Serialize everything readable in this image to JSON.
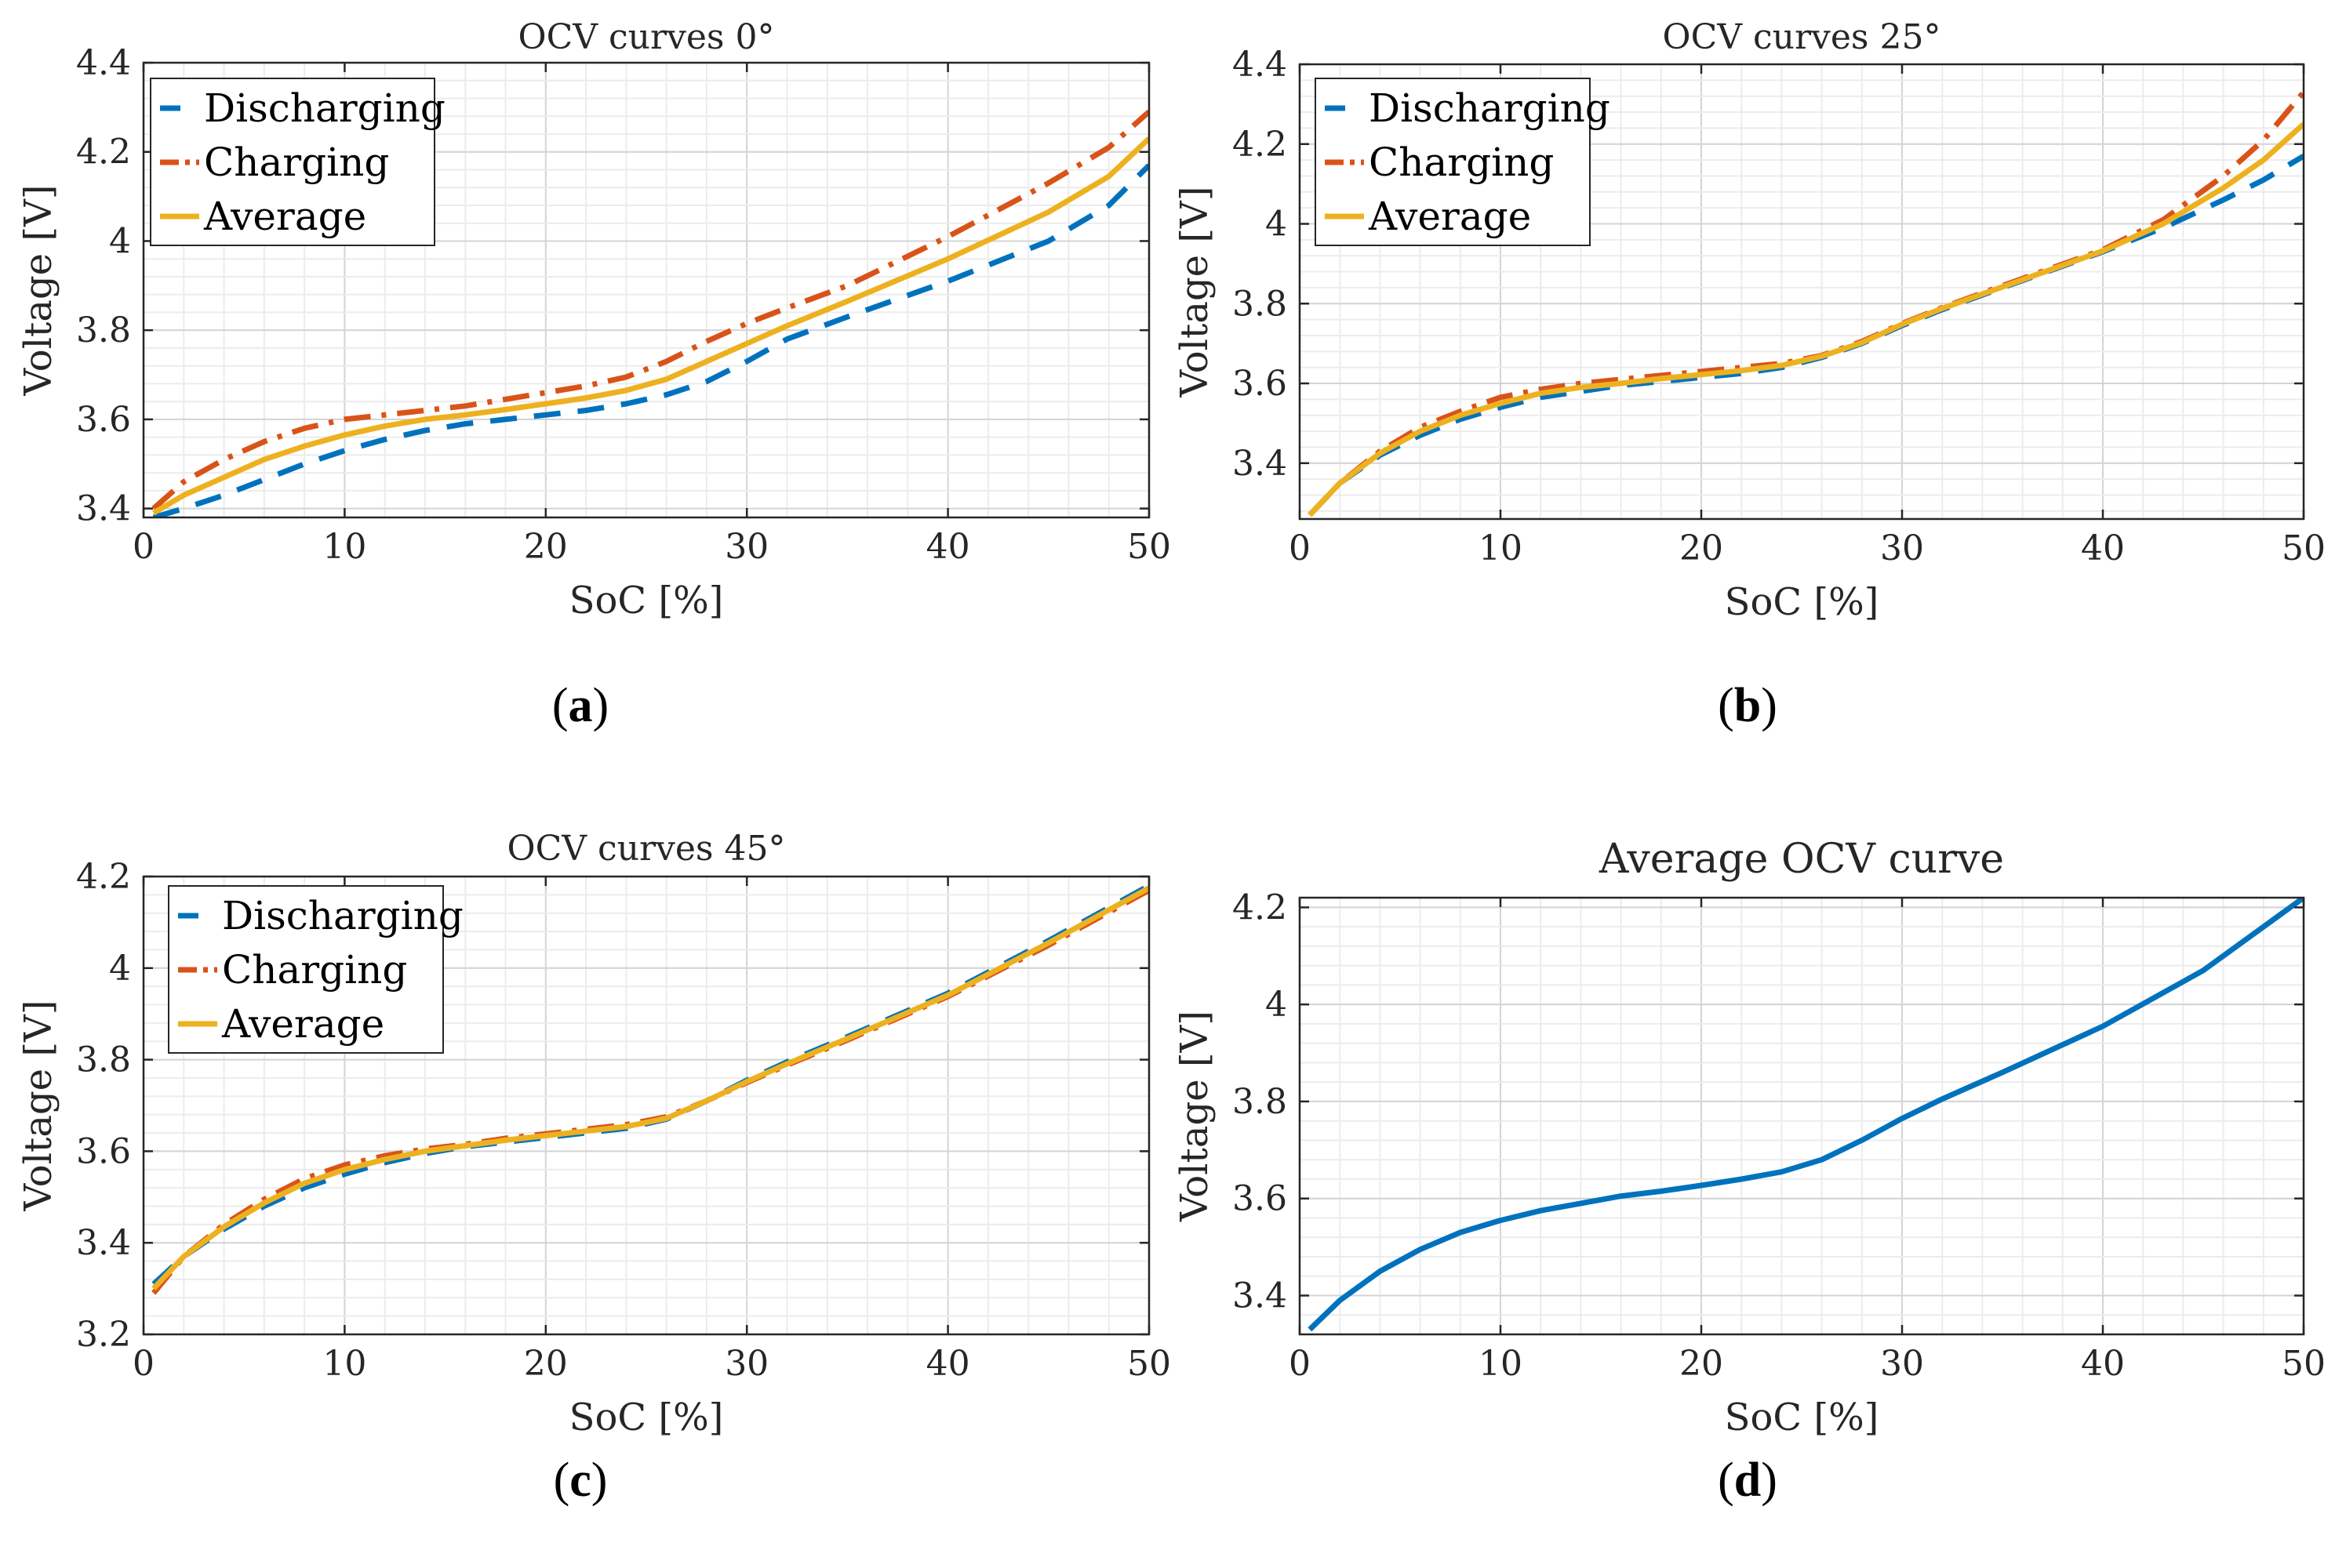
{
  "colors": {
    "discharging": "#0072bd",
    "charging": "#d95319",
    "average": "#edb120",
    "axis": "#262626",
    "grid": "#dcdcdc"
  },
  "chart_data": [
    {
      "type": "line",
      "title": "OCV curves 0°",
      "caption": "(a)",
      "caption_letter": "a",
      "xlabel": "SoC [%]",
      "ylabel": "Voltage [V]",
      "xlim": [
        0,
        50
      ],
      "ylim": [
        3.38,
        4.4
      ],
      "xticks": [
        0,
        10,
        20,
        30,
        40,
        50
      ],
      "yticks": [
        3.4,
        3.6,
        3.8,
        4.0,
        4.2,
        4.4
      ],
      "ytick_labels": [
        "3.4",
        "3.6",
        "3.8",
        "4",
        "4.2",
        "4.4"
      ],
      "grid": true,
      "legend": "top-left",
      "series": [
        {
          "name": "Discharging",
          "style": "dashed",
          "x": [
            0.5,
            2,
            4,
            6,
            8,
            10,
            12,
            14,
            16,
            18,
            20,
            22,
            24,
            26,
            28,
            30,
            32,
            35,
            40,
            45,
            48,
            50
          ],
          "y": [
            3.38,
            3.4,
            3.43,
            3.465,
            3.5,
            3.53,
            3.555,
            3.575,
            3.59,
            3.6,
            3.61,
            3.62,
            3.635,
            3.655,
            3.685,
            3.73,
            3.78,
            3.83,
            3.91,
            4.0,
            4.08,
            4.17
          ]
        },
        {
          "name": "Charging",
          "style": "dashdot",
          "x": [
            0.5,
            2,
            4,
            6,
            8,
            10,
            12,
            14,
            16,
            18,
            20,
            22,
            24,
            26,
            28,
            30,
            32,
            35,
            40,
            45,
            48,
            50
          ],
          "y": [
            3.4,
            3.46,
            3.51,
            3.55,
            3.58,
            3.6,
            3.61,
            3.62,
            3.63,
            3.645,
            3.66,
            3.675,
            3.695,
            3.73,
            3.775,
            3.815,
            3.85,
            3.9,
            4.01,
            4.13,
            4.21,
            4.29
          ]
        },
        {
          "name": "Average",
          "style": "solid",
          "x": [
            0.5,
            2,
            4,
            6,
            8,
            10,
            12,
            14,
            16,
            18,
            20,
            22,
            24,
            26,
            28,
            30,
            32,
            35,
            40,
            45,
            48,
            50
          ],
          "y": [
            3.39,
            3.43,
            3.47,
            3.51,
            3.54,
            3.565,
            3.585,
            3.6,
            3.61,
            3.622,
            3.635,
            3.648,
            3.665,
            3.69,
            3.73,
            3.77,
            3.81,
            3.865,
            3.96,
            4.065,
            4.145,
            4.23
          ]
        }
      ]
    },
    {
      "type": "line",
      "title": "OCV curves 25°",
      "caption": "(b)",
      "caption_letter": "b",
      "xlabel": "SoC [%]",
      "ylabel": "Voltage [V]",
      "xlim": [
        0,
        50
      ],
      "ylim": [
        3.26,
        4.4
      ],
      "xticks": [
        0,
        10,
        20,
        30,
        40,
        50
      ],
      "yticks": [
        3.4,
        3.6,
        3.8,
        4.0,
        4.2,
        4.4
      ],
      "ytick_labels": [
        "3.4",
        "3.6",
        "3.8",
        "4",
        "4.2",
        "4.4"
      ],
      "grid": true,
      "legend": "top-left",
      "series": [
        {
          "name": "Discharging",
          "style": "dashed",
          "x": [
            0.5,
            2,
            4,
            6,
            8,
            10,
            12,
            14,
            16,
            18,
            20,
            22,
            24,
            26,
            28,
            30,
            32,
            35,
            40,
            43,
            46,
            48,
            50
          ],
          "y": [
            3.27,
            3.35,
            3.42,
            3.47,
            3.51,
            3.54,
            3.565,
            3.58,
            3.595,
            3.605,
            3.615,
            3.625,
            3.64,
            3.665,
            3.7,
            3.745,
            3.785,
            3.84,
            3.93,
            3.99,
            4.06,
            4.11,
            4.17
          ]
        },
        {
          "name": "Charging",
          "style": "dashdot",
          "x": [
            0.5,
            2,
            4,
            6,
            8,
            10,
            12,
            14,
            16,
            18,
            20,
            22,
            24,
            26,
            28,
            30,
            32,
            35,
            40,
            43,
            46,
            48,
            50
          ],
          "y": [
            3.27,
            3.35,
            3.43,
            3.49,
            3.53,
            3.565,
            3.585,
            3.6,
            3.61,
            3.62,
            3.63,
            3.64,
            3.65,
            3.67,
            3.705,
            3.75,
            3.79,
            3.845,
            3.935,
            4.01,
            4.12,
            4.21,
            4.33
          ]
        },
        {
          "name": "Average",
          "style": "solid",
          "x": [
            0.5,
            2,
            4,
            6,
            8,
            10,
            12,
            14,
            16,
            18,
            20,
            22,
            24,
            26,
            28,
            30,
            32,
            35,
            40,
            43,
            46,
            48,
            50
          ],
          "y": [
            3.27,
            3.35,
            3.425,
            3.48,
            3.52,
            3.55,
            3.575,
            3.59,
            3.6,
            3.612,
            3.622,
            3.632,
            3.645,
            3.668,
            3.702,
            3.748,
            3.788,
            3.842,
            3.932,
            4.0,
            4.09,
            4.16,
            4.25
          ]
        }
      ]
    },
    {
      "type": "line",
      "title": "OCV curves 45°",
      "caption": "(c)",
      "caption_letter": "c",
      "xlabel": "SoC [%]",
      "ylabel": "Voltage [V]",
      "xlim": [
        0,
        50
      ],
      "ylim": [
        3.2,
        4.2
      ],
      "xticks": [
        0,
        10,
        20,
        30,
        40,
        50
      ],
      "yticks": [
        3.2,
        3.4,
        3.6,
        3.8,
        4.0,
        4.2
      ],
      "ytick_labels": [
        "3.2",
        "3.4",
        "3.6",
        "3.8",
        "4",
        "4.2"
      ],
      "grid": true,
      "legend": "top-left",
      "series": [
        {
          "name": "Discharging",
          "style": "dashed",
          "x": [
            0.5,
            2,
            4,
            6,
            8,
            10,
            12,
            14,
            16,
            18,
            20,
            22,
            24,
            26,
            28,
            30,
            32,
            35,
            40,
            45,
            50
          ],
          "y": [
            3.31,
            3.37,
            3.43,
            3.48,
            3.52,
            3.55,
            3.575,
            3.595,
            3.61,
            3.62,
            3.63,
            3.64,
            3.65,
            3.67,
            3.71,
            3.755,
            3.795,
            3.85,
            3.945,
            4.06,
            4.18
          ]
        },
        {
          "name": "Charging",
          "style": "dashdot",
          "x": [
            0.5,
            2,
            4,
            6,
            8,
            10,
            12,
            14,
            16,
            18,
            20,
            22,
            24,
            26,
            28,
            30,
            32,
            35,
            40,
            45,
            50
          ],
          "y": [
            3.29,
            3.37,
            3.44,
            3.495,
            3.54,
            3.57,
            3.59,
            3.605,
            3.615,
            3.628,
            3.638,
            3.648,
            3.658,
            3.675,
            3.71,
            3.75,
            3.788,
            3.843,
            3.938,
            4.05,
            4.17
          ]
        },
        {
          "name": "Average",
          "style": "solid",
          "x": [
            0.5,
            2,
            4,
            6,
            8,
            10,
            12,
            14,
            16,
            18,
            20,
            22,
            24,
            26,
            28,
            30,
            32,
            35,
            40,
            45,
            50
          ],
          "y": [
            3.3,
            3.37,
            3.435,
            3.487,
            3.53,
            3.56,
            3.582,
            3.6,
            3.612,
            3.624,
            3.634,
            3.644,
            3.654,
            3.672,
            3.71,
            3.752,
            3.791,
            3.846,
            3.941,
            4.055,
            4.175
          ]
        }
      ]
    },
    {
      "type": "line",
      "title": "Average OCV curve",
      "caption": "(d)",
      "caption_letter": "d",
      "xlabel": "SoC [%]",
      "ylabel": "Voltage [V]",
      "xlim": [
        0,
        50
      ],
      "ylim": [
        3.32,
        4.22
      ],
      "xticks": [
        0,
        10,
        20,
        30,
        40,
        50
      ],
      "yticks": [
        3.4,
        3.6,
        3.8,
        4.0,
        4.2
      ],
      "ytick_labels": [
        "3.4",
        "3.6",
        "3.8",
        "4",
        "4.2"
      ],
      "grid": true,
      "legend": "none",
      "series": [
        {
          "name": "Average OCV",
          "style": "solid",
          "x": [
            0.5,
            2,
            4,
            6,
            8,
            10,
            12,
            14,
            16,
            18,
            20,
            22,
            24,
            26,
            28,
            30,
            32,
            35,
            40,
            45,
            50
          ],
          "y": [
            3.33,
            3.39,
            3.45,
            3.495,
            3.53,
            3.555,
            3.575,
            3.59,
            3.605,
            3.615,
            3.627,
            3.64,
            3.655,
            3.68,
            3.72,
            3.765,
            3.805,
            3.86,
            3.955,
            4.07,
            4.22
          ]
        }
      ]
    }
  ]
}
